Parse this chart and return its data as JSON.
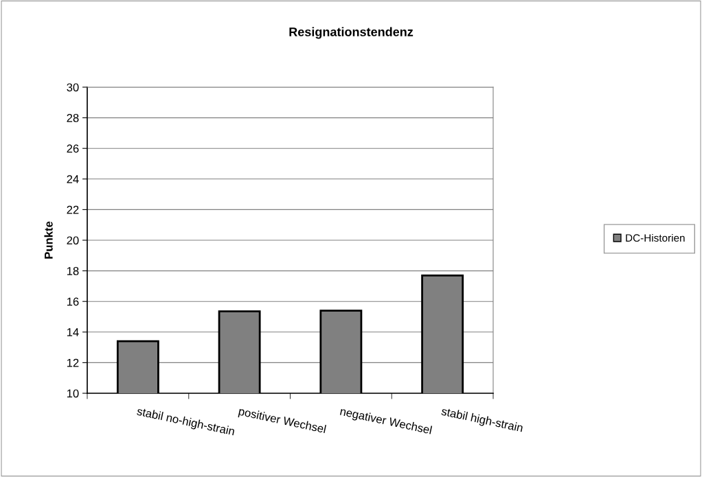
{
  "chart_data": {
    "type": "bar",
    "title": "Resignationstendenz",
    "ylabel": "Punkte",
    "categories": [
      "stabil no-high-strain",
      "positiver Wechsel",
      "negativer Wechsel",
      "stabil high-strain"
    ],
    "series": [
      {
        "name": "DC-Historien",
        "color": "#808080",
        "values": [
          13.4,
          15.35,
          15.4,
          17.7
        ]
      }
    ],
    "ylim": [
      10,
      30
    ],
    "yticks": [
      10,
      12,
      14,
      16,
      18,
      20,
      22,
      24,
      26,
      28,
      30
    ],
    "grid": "y",
    "legend": "right"
  }
}
